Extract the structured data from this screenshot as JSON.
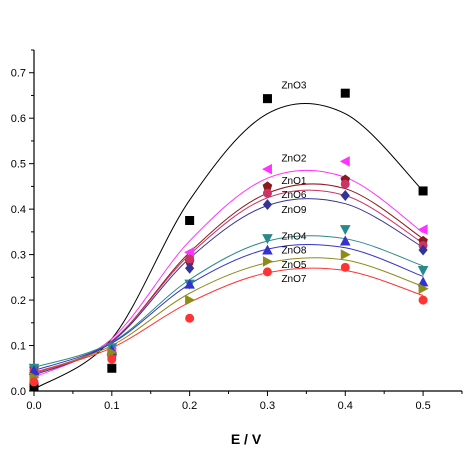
{
  "chart_data": {
    "type": "scatter",
    "title": "",
    "xlabel": "E / V",
    "ylabel": "",
    "xlim": [
      0,
      0.55
    ],
    "ylim": [
      0,
      0.75
    ],
    "xticks": [
      "0.0",
      "0.1",
      "0.2",
      "0.3",
      "0.4",
      "0.5"
    ],
    "yticks": [
      "0.0",
      "0.1",
      "0.2",
      "0.3",
      "0.4",
      "0.5",
      "0.6",
      "0.7"
    ],
    "grid": false,
    "legend": "none",
    "x": [
      0,
      0.1,
      0.2,
      0.3,
      0.4,
      0.5
    ],
    "series": [
      {
        "name": "ZnO3",
        "color": "#000000",
        "marker": "square",
        "values": [
          0.01,
          0.05,
          0.375,
          0.643,
          0.655,
          0.44
        ],
        "fit": [
          0.004,
          0.115,
          0.42,
          0.61,
          0.61,
          0.44
        ]
      },
      {
        "name": "ZnO2",
        "color": "#ff33ff",
        "marker": "triangle-left",
        "values": [
          0.04,
          0.09,
          0.305,
          0.488,
          0.505,
          0.355
        ],
        "fit": [
          0.03,
          0.115,
          0.33,
          0.468,
          0.47,
          0.348
        ]
      },
      {
        "name": "ZnO1",
        "color": "#8b1a1a",
        "marker": "pentagon",
        "values": [
          0.05,
          0.075,
          0.285,
          0.45,
          0.465,
          0.33
        ],
        "fit": [
          0.04,
          0.11,
          0.305,
          0.435,
          0.445,
          0.335
        ]
      },
      {
        "name": "ZnO6",
        "color": "#cc3366",
        "marker": "circle",
        "values": [
          0.045,
          0.08,
          0.29,
          0.435,
          0.455,
          0.32
        ],
        "fit": [
          0.038,
          0.11,
          0.3,
          0.425,
          0.43,
          0.325
        ]
      },
      {
        "name": "ZnO9",
        "color": "#333399",
        "marker": "diamond",
        "values": [
          0.04,
          0.085,
          0.27,
          0.41,
          0.43,
          0.31
        ],
        "fit": [
          0.035,
          0.108,
          0.292,
          0.408,
          0.412,
          0.316
        ]
      },
      {
        "name": "ZnO4",
        "color": "#2a8a8a",
        "marker": "triangle-down",
        "values": [
          0.05,
          0.095,
          0.235,
          0.335,
          0.355,
          0.265
        ],
        "fit": [
          0.052,
          0.107,
          0.245,
          0.33,
          0.335,
          0.275
        ]
      },
      {
        "name": "ZnO8",
        "color": "#3333cc",
        "marker": "triangle-up",
        "values": [
          0.045,
          0.09,
          0.235,
          0.31,
          0.33,
          0.24
        ],
        "fit": [
          0.045,
          0.105,
          0.235,
          0.312,
          0.315,
          0.252
        ]
      },
      {
        "name": "ZnO5",
        "color": "#8c8c1a",
        "marker": "triangle-right",
        "values": [
          0.03,
          0.085,
          0.2,
          0.285,
          0.3,
          0.225
        ],
        "fit": [
          0.04,
          0.1,
          0.215,
          0.282,
          0.288,
          0.23
        ]
      },
      {
        "name": "ZnO7",
        "color": "#ff3333",
        "marker": "circle",
        "values": [
          0.02,
          0.07,
          0.16,
          0.262,
          0.272,
          0.2
        ],
        "fit": [
          0.04,
          0.095,
          0.195,
          0.26,
          0.265,
          0.21
        ]
      }
    ],
    "annotations": [
      {
        "text": "ZnO3",
        "x": 0.318,
        "y": 0.665
      },
      {
        "text": "ZnO2",
        "x": 0.318,
        "y": 0.505
      },
      {
        "text": "ZnO1",
        "x": 0.318,
        "y": 0.455
      },
      {
        "text": "ZnO6",
        "x": 0.318,
        "y": 0.425
      },
      {
        "text": "ZnO9",
        "x": 0.318,
        "y": 0.392
      },
      {
        "text": "ZnO4",
        "x": 0.318,
        "y": 0.333
      },
      {
        "text": "ZnO8",
        "x": 0.318,
        "y": 0.302
      },
      {
        "text": "ZnO5",
        "x": 0.318,
        "y": 0.27
      },
      {
        "text": "ZnO7",
        "x": 0.318,
        "y": 0.24
      }
    ]
  }
}
